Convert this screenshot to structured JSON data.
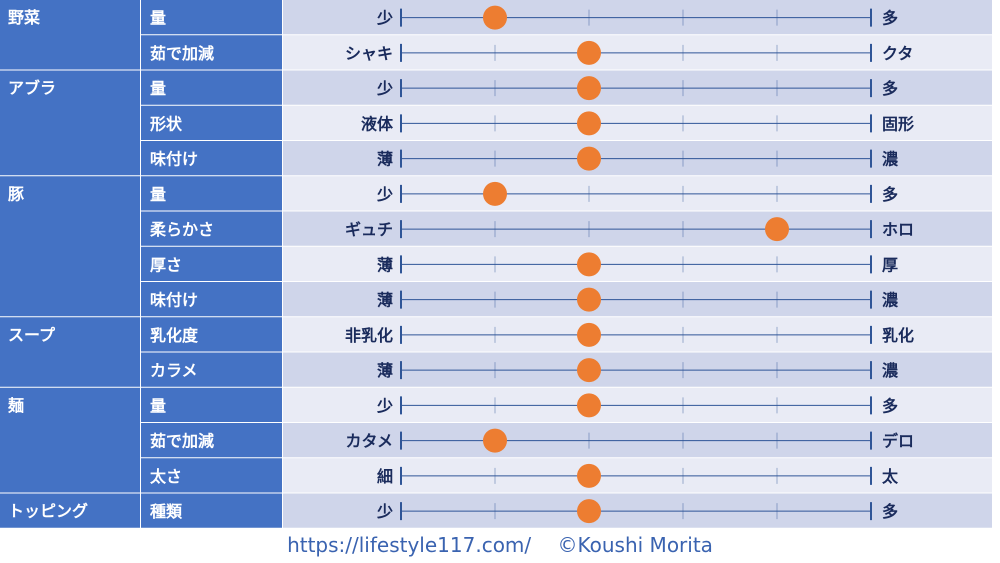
{
  "chart_data": {
    "type": "table",
    "scale_positions": 6,
    "rows": [
      {
        "category": "野菜",
        "item": "量",
        "left": "少",
        "right": "多",
        "value": 2
      },
      {
        "category": "",
        "item": "茹で加減",
        "left": "シャキ",
        "right": "クタ",
        "value": 3
      },
      {
        "category": "アブラ",
        "item": "量",
        "left": "少",
        "right": "多",
        "value": 3
      },
      {
        "category": "",
        "item": "形状",
        "left": "液体",
        "right": "固形",
        "value": 3
      },
      {
        "category": "",
        "item": "味付け",
        "left": "薄",
        "right": "濃",
        "value": 3
      },
      {
        "category": "豚",
        "item": "量",
        "left": "少",
        "right": "多",
        "value": 2
      },
      {
        "category": "",
        "item": "柔らかさ",
        "left": "ギュチ",
        "right": "ホロ",
        "value": 5
      },
      {
        "category": "",
        "item": "厚さ",
        "left": "薄",
        "right": "厚",
        "value": 3
      },
      {
        "category": "",
        "item": "味付け",
        "left": "薄",
        "right": "濃",
        "value": 3
      },
      {
        "category": "スープ",
        "item": "乳化度",
        "left": "非乳化",
        "right": "乳化",
        "value": 3
      },
      {
        "category": "",
        "item": "カラメ",
        "left": "薄",
        "right": "濃",
        "value": 3
      },
      {
        "category": "麺",
        "item": "量",
        "left": "少",
        "right": "多",
        "value": 3
      },
      {
        "category": "",
        "item": "茹で加減",
        "left": "カタメ",
        "right": "デロ",
        "value": 2
      },
      {
        "category": "",
        "item": "太さ",
        "left": "細",
        "right": "太",
        "value": 3
      },
      {
        "category": "トッピング",
        "item": "種類",
        "left": "少",
        "right": "多",
        "value": 3
      }
    ]
  },
  "footer": {
    "url": "https://lifestyle117.com/",
    "credit": "©Koushi Morita"
  },
  "colors": {
    "header_blue": "#4472c4",
    "row_light": "#e9ebf5",
    "row_dark": "#cfd5ea",
    "line": "#2f5597",
    "dot": "#ed7d31",
    "text_dark": "#1a2b5c",
    "footer_text": "#3a63b0"
  }
}
